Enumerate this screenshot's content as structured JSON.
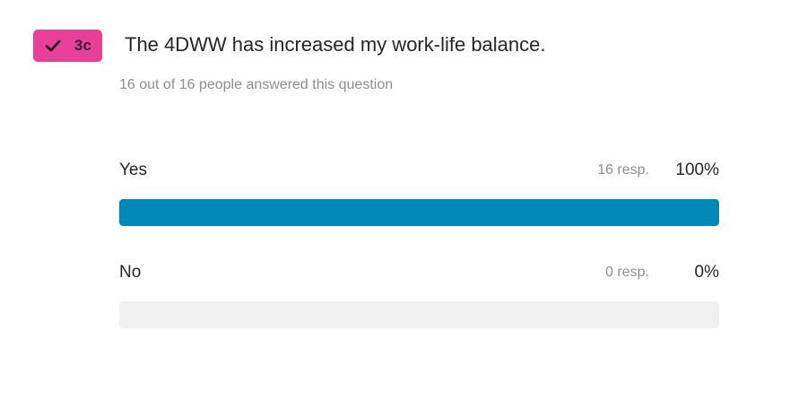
{
  "question": {
    "badge": {
      "label": "3c",
      "icon": "check-icon",
      "color": "#e8409a"
    },
    "title": "The 4DWW has increased my work-life balance.",
    "answered_text": "16 out of 16 people answered this question"
  },
  "chart_data": {
    "type": "bar",
    "orientation": "horizontal",
    "categories": [
      "Yes",
      "No"
    ],
    "values": [
      16,
      0
    ],
    "responses_labels": [
      "16 resp.",
      "0 resp."
    ],
    "percent_labels": [
      "100%",
      "0%"
    ],
    "percent_values": [
      100,
      0
    ],
    "xlim": [
      0,
      100
    ],
    "bar_color": "#0088b6",
    "track_color": "#f0f0f0"
  }
}
